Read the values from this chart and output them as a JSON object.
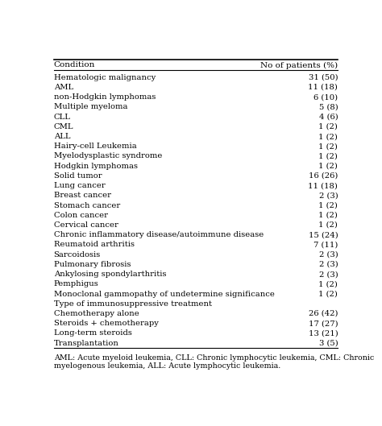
{
  "col1_header": "Condition",
  "col2_header": "No of patients (%)",
  "rows": [
    {
      "condition": "Hematologic malignancy",
      "value": "31 (50)",
      "bold": false
    },
    {
      "condition": "AML",
      "value": "11 (18)",
      "bold": false
    },
    {
      "condition": "non-Hodgkin lymphomas",
      "value": "6 (10)",
      "bold": false
    },
    {
      "condition": "Multiple myeloma",
      "value": "5 (8)",
      "bold": false
    },
    {
      "condition": "CLL",
      "value": "4 (6)",
      "bold": false
    },
    {
      "condition": "CML",
      "value": "1 (2)",
      "bold": false
    },
    {
      "condition": "ALL",
      "value": "1 (2)",
      "bold": false
    },
    {
      "condition": "Hairy-cell Leukemia",
      "value": "1 (2)",
      "bold": false
    },
    {
      "condition": "Myelodysplastic syndrome",
      "value": "1 (2)",
      "bold": false
    },
    {
      "condition": "Hodgkin lymphomas",
      "value": "1 (2)",
      "bold": false
    },
    {
      "condition": "Solid tumor",
      "value": "16 (26)",
      "bold": false
    },
    {
      "condition": "Lung cancer",
      "value": "11 (18)",
      "bold": false
    },
    {
      "condition": "Breast cancer",
      "value": "2 (3)",
      "bold": false
    },
    {
      "condition": "Stomach cancer",
      "value": "1 (2)",
      "bold": false
    },
    {
      "condition": "Colon cancer",
      "value": "1 (2)",
      "bold": false
    },
    {
      "condition": "Cervical cancer",
      "value": "1 (2)",
      "bold": false
    },
    {
      "condition": "Chronic inflammatory disease/autoimmune disease",
      "value": "15 (24)",
      "bold": false
    },
    {
      "condition": "Reumatoid arthritis",
      "value": "7 (11)",
      "bold": false
    },
    {
      "condition": "Sarcoidosis",
      "value": "2 (3)",
      "bold": false
    },
    {
      "condition": "Pulmonary fibrosis",
      "value": "2 (3)",
      "bold": false
    },
    {
      "condition": "Ankylosing spondylarthritis",
      "value": "2 (3)",
      "bold": false
    },
    {
      "condition": "Pemphigus",
      "value": "1 (2)",
      "bold": false
    },
    {
      "condition": "Monoclonal gammopathy of undetermine significance",
      "value": "1 (2)",
      "bold": false
    },
    {
      "condition": "Type of immunosuppressive treatment",
      "value": "",
      "bold": false
    },
    {
      "condition": "Chemotherapy alone",
      "value": "26 (42)",
      "bold": false
    },
    {
      "condition": "Steroids + chemotherapy",
      "value": "17 (27)",
      "bold": false
    },
    {
      "condition": "Long-term steroids",
      "value": "13 (21)",
      "bold": false
    },
    {
      "condition": "Transplantation",
      "value": "3 (5)",
      "bold": false
    }
  ],
  "footnote1": "AML: Acute myeloid leukemia, CLL: Chronic lymphocytic leukemia, CML: Chronic",
  "footnote2": "myelogenous leukemia, ALL: Acute lymphocytic leukemia.",
  "bg_color": "#ffffff",
  "text_color": "#000000",
  "line_color": "#000000",
  "font_size": 7.2,
  "header_font_size": 7.5,
  "footnote_font_size": 6.8
}
